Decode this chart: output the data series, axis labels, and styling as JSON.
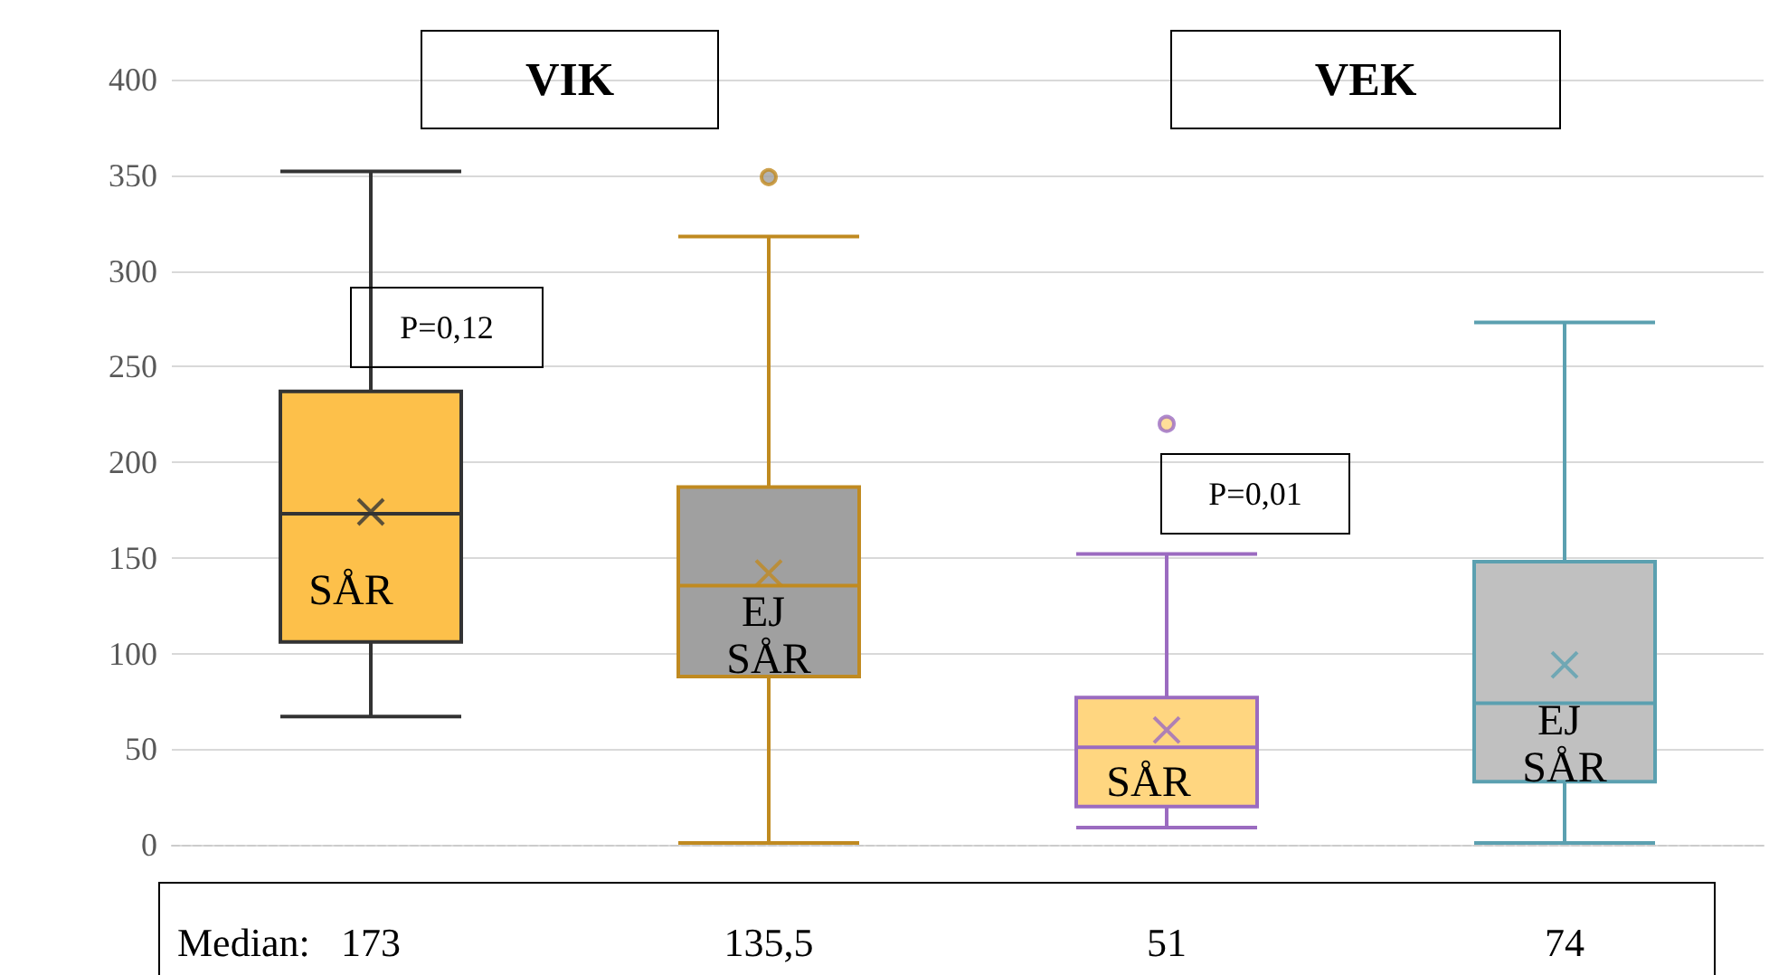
{
  "chart_data": {
    "type": "box",
    "categories": [
      null,
      null,
      null,
      null
    ],
    "boxes": [
      {
        "low": 67,
        "q1": 106,
        "median": 173,
        "q3": 237,
        "high": 352,
        "mean": 174
      },
      {
        "low": 1,
        "q1": 88,
        "median": 135.5,
        "q3": 187,
        "high": 318,
        "mean": 142,
        "outliers": [
          349
        ]
      },
      {
        "low": 9,
        "q1": 20,
        "median": 51,
        "q3": 77,
        "high": 152,
        "mean": 60,
        "outliers": [
          220
        ]
      },
      {
        "low": 1,
        "q1": 33,
        "median": 74,
        "q3": 148,
        "high": 273,
        "mean": 94
      }
    ],
    "colors": [
      "#fdc04a",
      "#a0a0a0",
      "#ffd680",
      "#c0c0c0"
    ],
    "ylim": [
      0,
      400
    ],
    "yticks": [
      0,
      50,
      100,
      150,
      200,
      250,
      300,
      350,
      400
    ],
    "grid": "y",
    "marker": "cross",
    "value_labels": [
      "173",
      "135,5",
      "51",
      "74"
    ],
    "annotations": [
      "VIK",
      "VEK",
      "P=0,12",
      "P=0,01",
      "SÅR",
      "EJ SÅR",
      "SÅR",
      "EJ SÅR",
      "Median:"
    ]
  }
}
